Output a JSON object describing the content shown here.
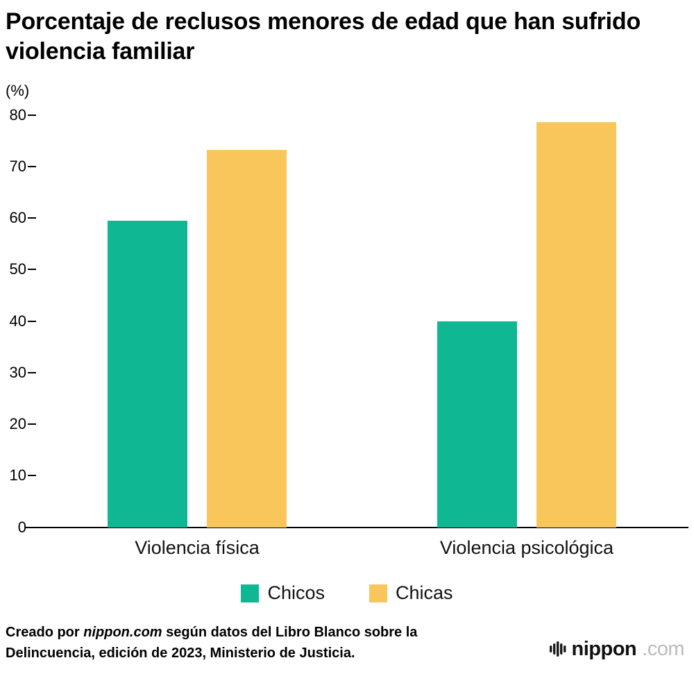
{
  "title": "Porcentaje de reclusos menores de edad que han sufrido violencia familiar",
  "chart_data": {
    "type": "bar",
    "title": "Porcentaje de reclusos menores de edad que han sufrido violencia familiar",
    "unit_label": "(%)",
    "categories": [
      "Violencia física",
      "Violencia psicológica"
    ],
    "series": [
      {
        "name": "Chicos",
        "color": "#0fb792",
        "values": [
          59.5,
          40.0
        ]
      },
      {
        "name": "Chicas",
        "color": "#f9c65c",
        "values": [
          73.2,
          78.6
        ]
      }
    ],
    "ylim": [
      0,
      80
    ],
    "yticks": [
      0,
      10,
      20,
      30,
      40,
      50,
      60,
      70,
      80
    ],
    "grid": false,
    "legend_position": "bottom"
  },
  "footer": {
    "credit_prefix": "Creado por ",
    "credit_source": "nippon.com",
    "credit_suffix": " según datos del Libro Blanco sobre la Delincuencia, edición de 2023, Ministerio de Justicia.",
    "logo_text": "nippon",
    "logo_suffix": ".com"
  }
}
